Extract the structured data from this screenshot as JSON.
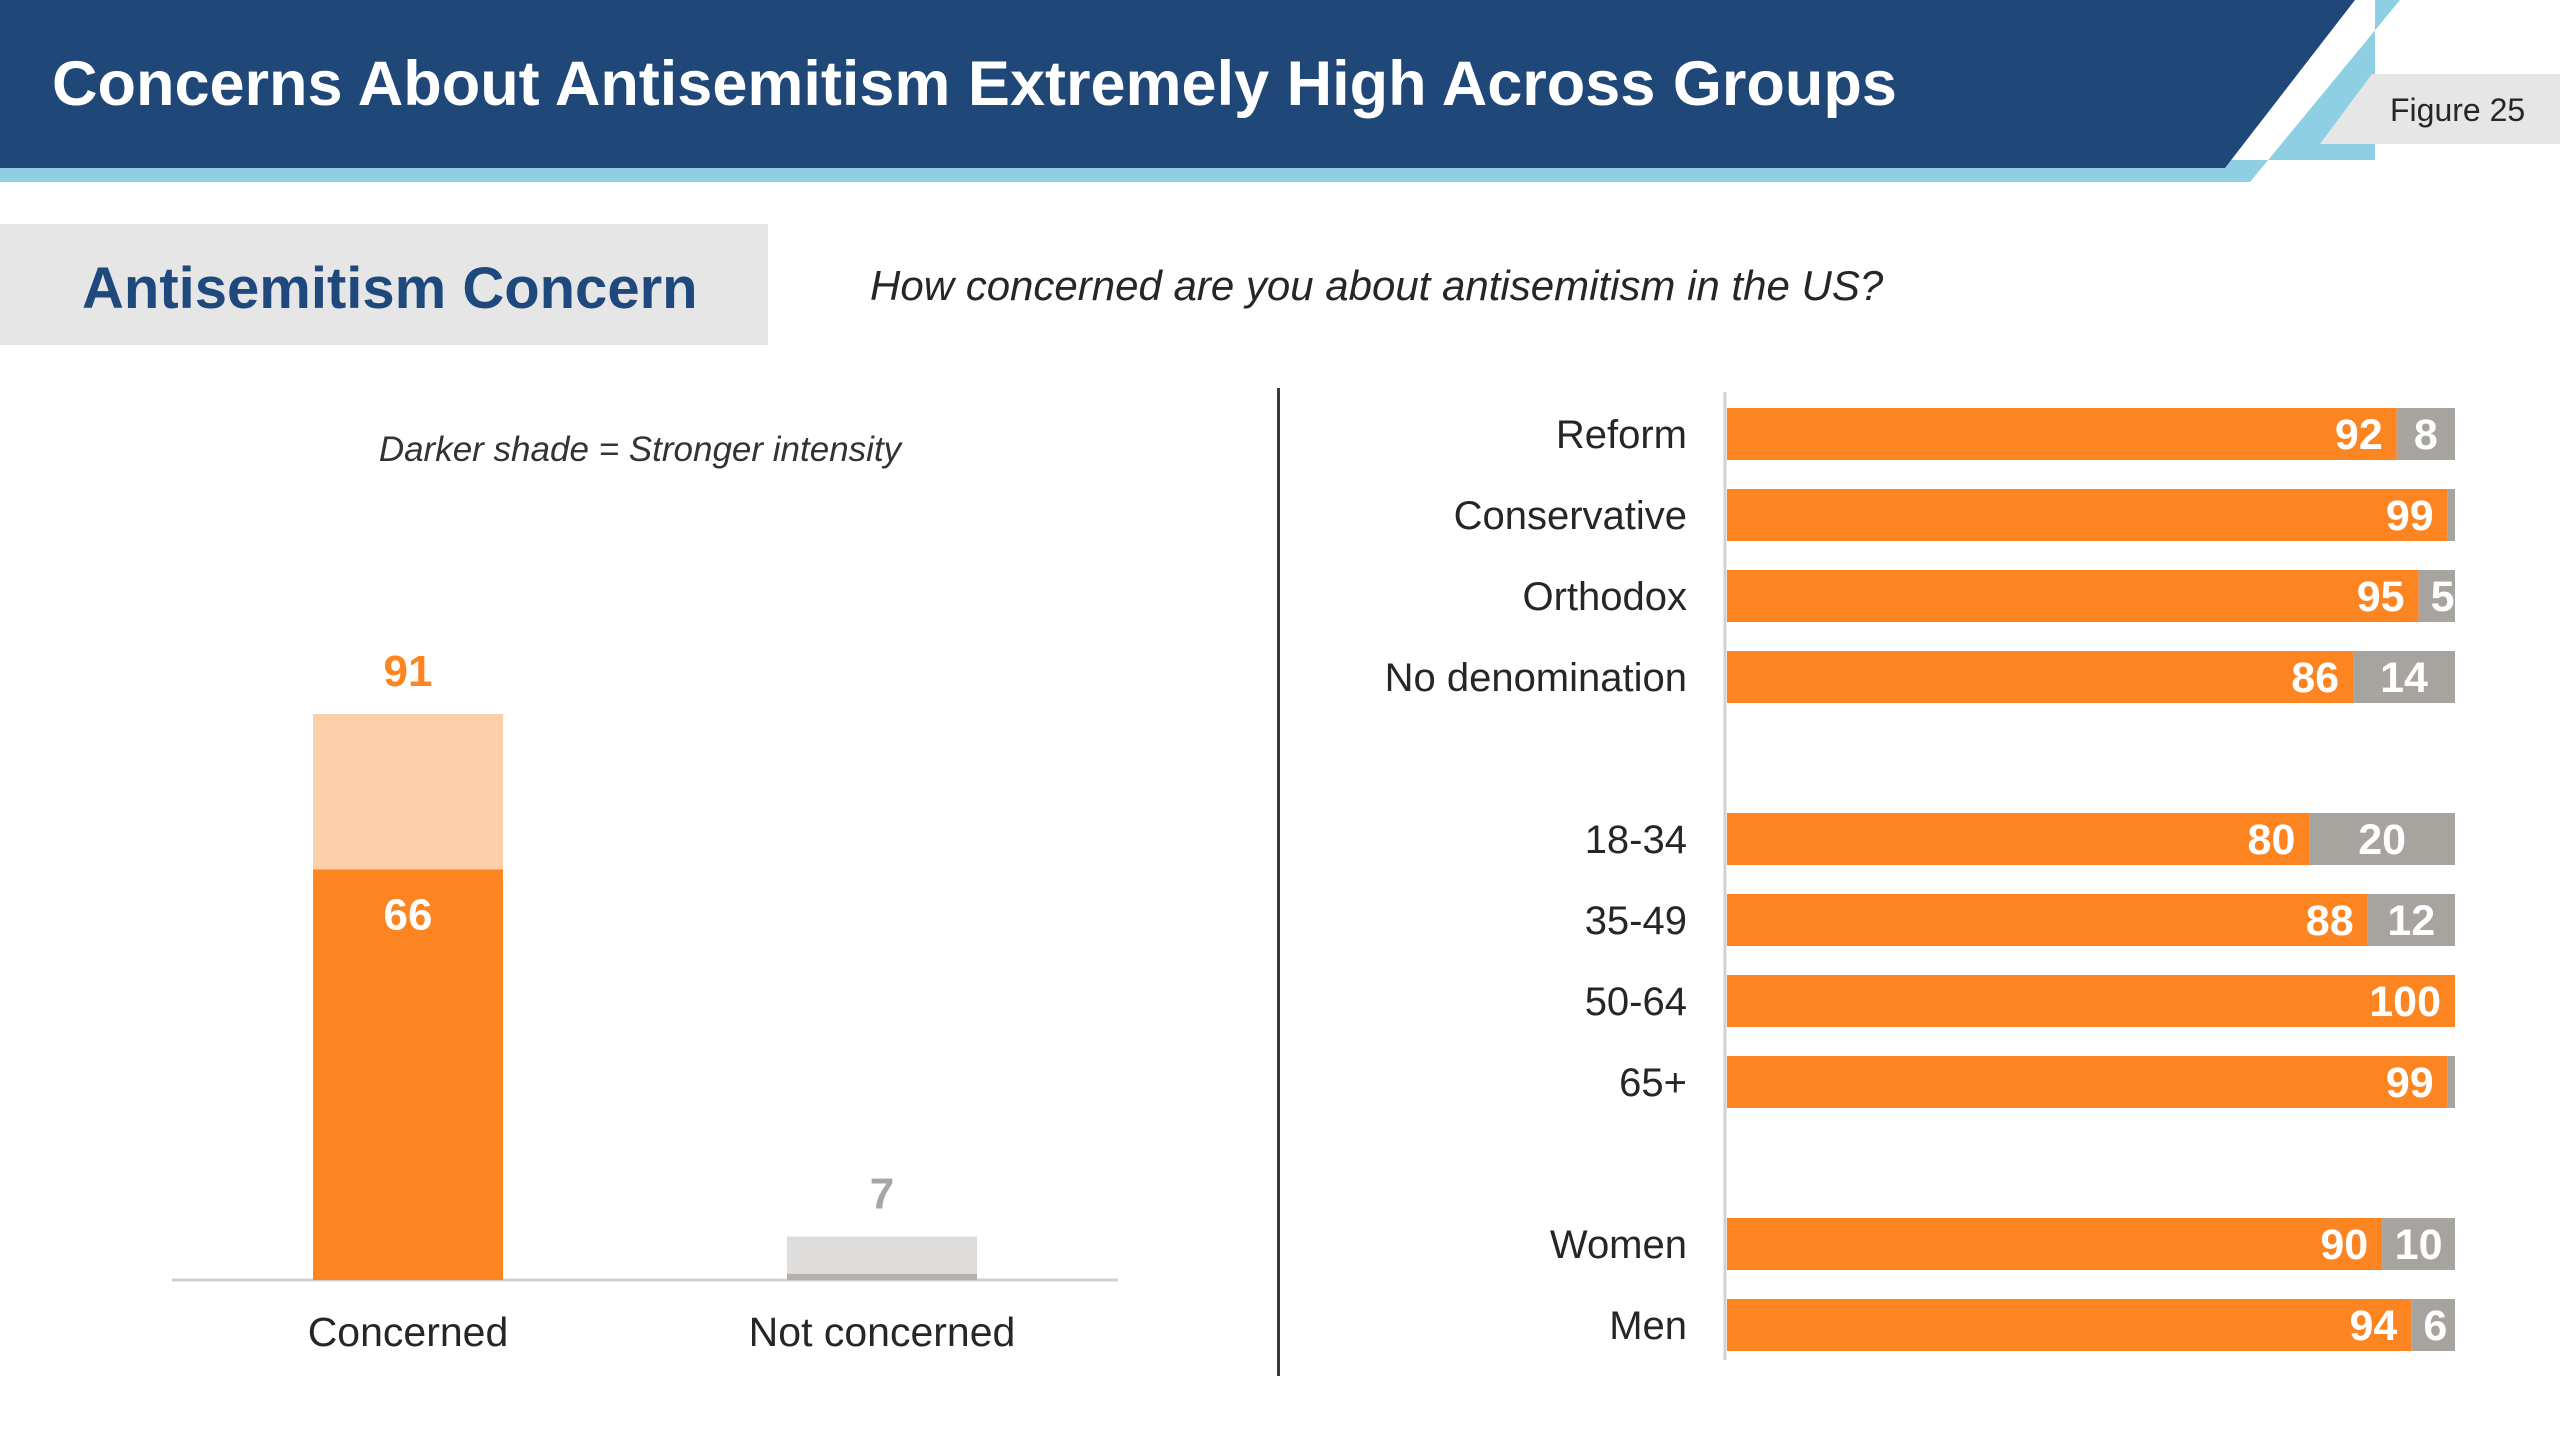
{
  "header": {
    "title": "Concerns About Antisemitism Extremely High Across Groups",
    "figure": "Figure 25"
  },
  "section": {
    "title": "Antisemitism Concern",
    "question": "How concerned are you about antisemitism in the US?"
  },
  "colors": {
    "navy": "#1f4879",
    "light_blue": "#8ecfe4",
    "orange": "#fd8521",
    "light_orange": "#fdd0a9",
    "gray_bar": "#a7a39f",
    "light_gray": "#dedddb",
    "dark_gray": "#b4b1ad",
    "axis": "#d0d0d0",
    "label_gray": "#a6a6a6"
  },
  "chart_data": [
    {
      "type": "bar",
      "note": "Darker shade = Stronger intensity",
      "categories": [
        "Concerned",
        "Not concerned"
      ],
      "totals": [
        91,
        7
      ],
      "strong": [
        66,
        1
      ],
      "labels_shown": [
        "91",
        "66",
        "7"
      ],
      "ylim": [
        0,
        100
      ]
    },
    {
      "type": "bar",
      "orientation": "horizontal",
      "stacked": true,
      "xlim": [
        0,
        100
      ],
      "groups": [
        {
          "categories": [
            "Reform",
            "Conservative",
            "Orthodox",
            "No denomination"
          ]
        },
        {
          "categories": [
            "18-34",
            "35-49",
            "50-64",
            "65+"
          ]
        },
        {
          "categories": [
            "Women",
            "Men"
          ]
        }
      ],
      "rows": [
        {
          "label": "Reform",
          "concerned": 92,
          "not_concerned": 8
        },
        {
          "label": "Conservative",
          "concerned": 99,
          "not_concerned": 1
        },
        {
          "label": "Orthodox",
          "concerned": 95,
          "not_concerned": 5
        },
        {
          "label": "No denomination",
          "concerned": 86,
          "not_concerned": 14
        },
        {
          "label": "18-34",
          "concerned": 80,
          "not_concerned": 20
        },
        {
          "label": "35-49",
          "concerned": 88,
          "not_concerned": 12
        },
        {
          "label": "50-64",
          "concerned": 100,
          "not_concerned": 0
        },
        {
          "label": "65+",
          "concerned": 99,
          "not_concerned": 1
        },
        {
          "label": "Women",
          "concerned": 90,
          "not_concerned": 10
        },
        {
          "label": "Men",
          "concerned": 94,
          "not_concerned": 6
        }
      ],
      "labels_shown": {
        "concerned": [
          "92",
          "99",
          "95",
          "86",
          "80",
          "88",
          "100",
          "99",
          "90",
          "94"
        ],
        "not_concerned": [
          "8",
          "",
          "5",
          "14",
          "20",
          "12",
          "",
          "",
          "10",
          "6"
        ]
      }
    }
  ]
}
